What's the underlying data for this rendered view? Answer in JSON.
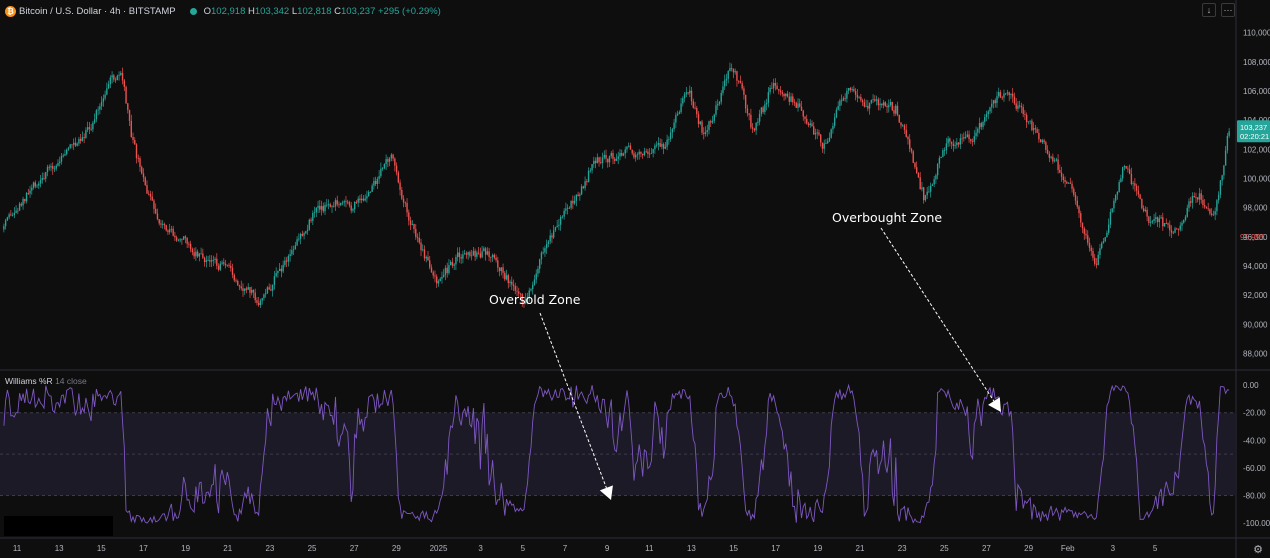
{
  "header": {
    "icon_glyph": "₿",
    "symbol": "Bitcoin / U.S. Dollar · 4h · BITSTAMP",
    "open_label": "O",
    "open": "102,918",
    "high_label": "H",
    "high": "103,342",
    "low_label": "L",
    "low": "102,818",
    "close_label": "C",
    "close": "103,237",
    "change": "+295 (+0.29%)"
  },
  "toolbar": {
    "down_glyph": "↓",
    "more_glyph": "⋯"
  },
  "indicator": {
    "name": "Williams %R",
    "params": "14 close"
  },
  "price_badges": {
    "current_price": "103,237",
    "countdown": "02:20:21",
    "marker_price": "95,995"
  },
  "annotations": {
    "oversold": "Oversold Zone",
    "overbought": "Overbought Zone"
  },
  "colors": {
    "background": "#0e0e0e",
    "up": "#26a69a",
    "down": "#ef5350",
    "indicator_line": "#7e57c2",
    "indicator_band": "#1c1a26",
    "text": "#d1d4dc",
    "annotation": "#ffffff"
  },
  "chart_data": [
    {
      "type": "candlestick",
      "title": "Bitcoin / U.S. Dollar · 4h · BITSTAMP",
      "ylim": [
        87000,
        111000
      ],
      "y_ticks": [
        "88,000",
        "90,000",
        "92,000",
        "94,000",
        "96,000",
        "98,000",
        "100,000",
        "102,000",
        "104,000",
        "106,000",
        "108,000",
        "110,000"
      ],
      "y_tick_values": [
        88000,
        90000,
        92000,
        94000,
        96000,
        98000,
        100000,
        102000,
        104000,
        106000,
        108000,
        110000
      ],
      "x_ticks": [
        "11",
        "13",
        "15",
        "17",
        "19",
        "21",
        "23",
        "25",
        "27",
        "29",
        "2025",
        "3",
        "5",
        "7",
        "9",
        "11",
        "13",
        "15",
        "17",
        "19",
        "21",
        "23",
        "25",
        "27",
        "29",
        "Feb",
        "3",
        "5"
      ],
      "trend_anchors": [
        [
          0,
          96500
        ],
        [
          8,
          97800
        ],
        [
          20,
          99800
        ],
        [
          28,
          100700
        ],
        [
          40,
          102400
        ],
        [
          52,
          103900
        ],
        [
          60,
          106700
        ],
        [
          68,
          107000
        ],
        [
          74,
          102300
        ],
        [
          86,
          97800
        ],
        [
          96,
          96500
        ],
        [
          112,
          94800
        ],
        [
          128,
          93700
        ],
        [
          148,
          91500
        ],
        [
          160,
          94000
        ],
        [
          176,
          97300
        ],
        [
          190,
          98600
        ],
        [
          200,
          98100
        ],
        [
          210,
          99000
        ],
        [
          222,
          101800
        ],
        [
          232,
          97500
        ],
        [
          248,
          92800
        ],
        [
          262,
          94700
        ],
        [
          280,
          94800
        ],
        [
          298,
          91300
        ],
        [
          310,
          95400
        ],
        [
          328,
          98800
        ],
        [
          340,
          101300
        ],
        [
          360,
          101800
        ],
        [
          378,
          102100
        ],
        [
          392,
          106300
        ],
        [
          402,
          102800
        ],
        [
          418,
          108000
        ],
        [
          430,
          103000
        ],
        [
          442,
          106800
        ],
        [
          458,
          104500
        ],
        [
          470,
          102300
        ],
        [
          482,
          105900
        ],
        [
          500,
          105000
        ],
        [
          512,
          104800
        ],
        [
          528,
          98500
        ],
        [
          540,
          102400
        ],
        [
          556,
          102700
        ],
        [
          572,
          105800
        ],
        [
          580,
          105200
        ],
        [
          598,
          102000
        ],
        [
          612,
          99200
        ],
        [
          626,
          93800
        ],
        [
          642,
          100900
        ],
        [
          656,
          97300
        ],
        [
          672,
          96300
        ],
        [
          684,
          99100
        ],
        [
          694,
          97200
        ],
        [
          702,
          103237
        ]
      ],
      "trend_anchor_units": "[candle index, price USD]",
      "candle_count": 703
    },
    {
      "type": "line",
      "title": "Williams %R",
      "series": [
        {
          "name": "Williams %R",
          "x_type": "candle_index"
        }
      ],
      "ylim": [
        -105,
        3
      ],
      "y_ticks": [
        "0.00",
        "-20.00",
        "-40.00",
        "-60.00",
        "-80.00",
        "-100.00"
      ],
      "y_tick_values": [
        0,
        -20,
        -40,
        -60,
        -80,
        -100
      ],
      "bands": [
        {
          "from": -20,
          "to": -80
        }
      ],
      "band_lines": [
        -20,
        -50,
        -80
      ]
    }
  ]
}
